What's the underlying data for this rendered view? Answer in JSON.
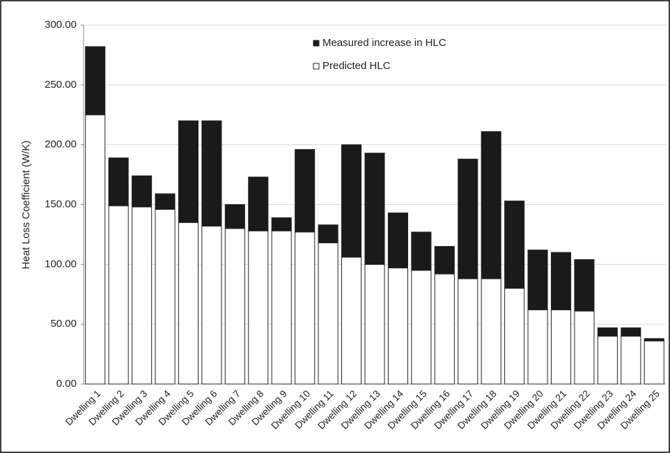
{
  "chart_data": {
    "type": "stacked_bar",
    "ylabel": "Heat Loss Coefficient (W/K)",
    "categories": [
      "Dwelling 1",
      "Dwelling 2",
      "Dwelling 3",
      "Dwelling 4",
      "Dwelling 5",
      "Dwelling 6",
      "Dwelling 7",
      "Dwelling 8",
      "Dwelling 9",
      "Dwelling 10",
      "Dwelling 11",
      "Dwelling 12",
      "Dwelling 13",
      "Dwelling 14",
      "Dwelling 15",
      "Dwelling 16",
      "Dwelling 17",
      "Dwelling 18",
      "Dwelling 19",
      "Dwelling 20",
      "Dwelling 21",
      "Dwelling 22",
      "Dwelling 23",
      "Dwelling 24",
      "Dwelling 25"
    ],
    "series": [
      {
        "name": "Measured increase in HLC",
        "color": "#1a1a1a",
        "values": [
          57,
          40,
          26,
          13,
          85,
          88,
          20,
          45,
          11,
          69,
          15,
          94,
          93,
          46,
          32,
          23,
          100,
          123,
          73,
          50,
          48,
          43,
          7,
          7,
          2
        ]
      },
      {
        "name": "Predicted HLC",
        "color": "#ffffff",
        "values": [
          225,
          149,
          148,
          146,
          135,
          132,
          130,
          128,
          128,
          127,
          118,
          106,
          100,
          97,
          95,
          92,
          88,
          88,
          80,
          62,
          62,
          61,
          40,
          40,
          36
        ]
      }
    ],
    "ylim": [
      0,
      300
    ],
    "yticks": [
      {
        "value": 0,
        "label": "0.00"
      },
      {
        "value": 50,
        "label": "50.00"
      },
      {
        "value": 100,
        "label": "100.00"
      },
      {
        "value": 150,
        "label": "150.00"
      },
      {
        "value": 200,
        "label": "200.00"
      },
      {
        "value": 250,
        "label": "250.00"
      },
      {
        "value": 300,
        "label": "300.00"
      }
    ],
    "grid": true
  }
}
